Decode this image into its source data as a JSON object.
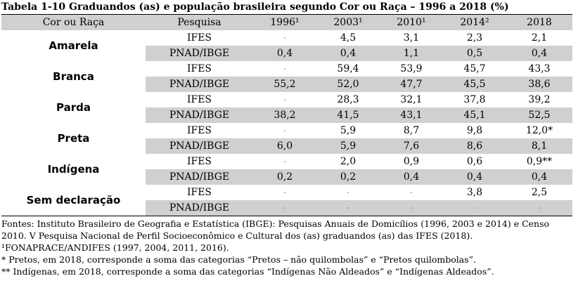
{
  "title": "Tabela 1-10 Graduandos (as) e população brasileira segundo Cor ou Raça – 1996 a 2018 (%)",
  "headers": [
    "Cor ou Raça",
    "Pesquisa",
    "1996¹",
    "2003¹",
    "2010¹",
    "2014²",
    "2018"
  ],
  "groups": [
    {
      "label": "Amarela",
      "rows": [
        {
          "pesquisa": "IFES",
          "values": [
            "-",
            "4,5",
            "3,1",
            "2,3",
            "2,1"
          ]
        },
        {
          "pesquisa": "PNAD/IBGE",
          "values": [
            "0,4",
            "0,4",
            "1,1",
            "0,5",
            "0,4"
          ]
        }
      ]
    },
    {
      "label": "Branca",
      "rows": [
        {
          "pesquisa": "IFES",
          "values": [
            "-",
            "59,4",
            "53,9",
            "45,7",
            "43,3"
          ]
        },
        {
          "pesquisa": "PNAD/IBGE",
          "values": [
            "55,2",
            "52,0",
            "47,7",
            "45,5",
            "38,6"
          ]
        }
      ]
    },
    {
      "label": "Parda",
      "rows": [
        {
          "pesquisa": "IFES",
          "values": [
            "-",
            "28,3",
            "32,1",
            "37,8",
            "39,2"
          ]
        },
        {
          "pesquisa": "PNAD/IBGE",
          "values": [
            "38,2",
            "41,5",
            "43,1",
            "45,1",
            "52,5"
          ]
        }
      ]
    },
    {
      "label": "Preta",
      "rows": [
        {
          "pesquisa": "IFES",
          "values": [
            "-",
            "5,9",
            "8,7",
            "9,8",
            "12,0*"
          ]
        },
        {
          "pesquisa": "PNAD/IBGE",
          "values": [
            "6,0",
            "5,9",
            "7,6",
            "8,6",
            "8,1"
          ]
        }
      ]
    },
    {
      "label": "Indígena",
      "rows": [
        {
          "pesquisa": "IFES",
          "values": [
            "-",
            "2,0",
            "0,9",
            "0,6",
            "0,9**"
          ]
        },
        {
          "pesquisa": "PNAD/IBGE",
          "values": [
            "0,2",
            "0,2",
            "0,4",
            "0,4",
            "0,4"
          ]
        }
      ]
    },
    {
      "label": "Sem declaração",
      "rows": [
        {
          "pesquisa": "IFES",
          "values": [
            "-",
            "-",
            "-",
            "3,8",
            "2,5"
          ]
        },
        {
          "pesquisa": "PNAD/IBGE",
          "values": [
            "-",
            "-",
            "-",
            "-",
            "-"
          ]
        }
      ]
    }
  ],
  "notes": [
    "Fontes: Instituto Brasileiro de Geografia e Estatística (IBGE): Pesquisas Anuais de Domicílios (1996, 2003 e 2014) e Censo 2010. V Pesquisa Nacional de Perfil Socioeconômico e Cultural dos (as) graduandos (as) das IFES (2018).",
    "¹FONAPRACE/ANDIFES (1997, 2004, 2011, 2016).",
    "* Pretos, em 2018, corresponde a soma das categorias “Pretos – não quilombolas” e “Pretos quilombolas”.",
    "** Indígenas, em 2018, corresponde a soma das categorias “Indígenas Não Aldeados” e “Indígenas Aldeados”."
  ],
  "colors": {
    "shade": "#d0d0d0",
    "dash": "#777777"
  }
}
